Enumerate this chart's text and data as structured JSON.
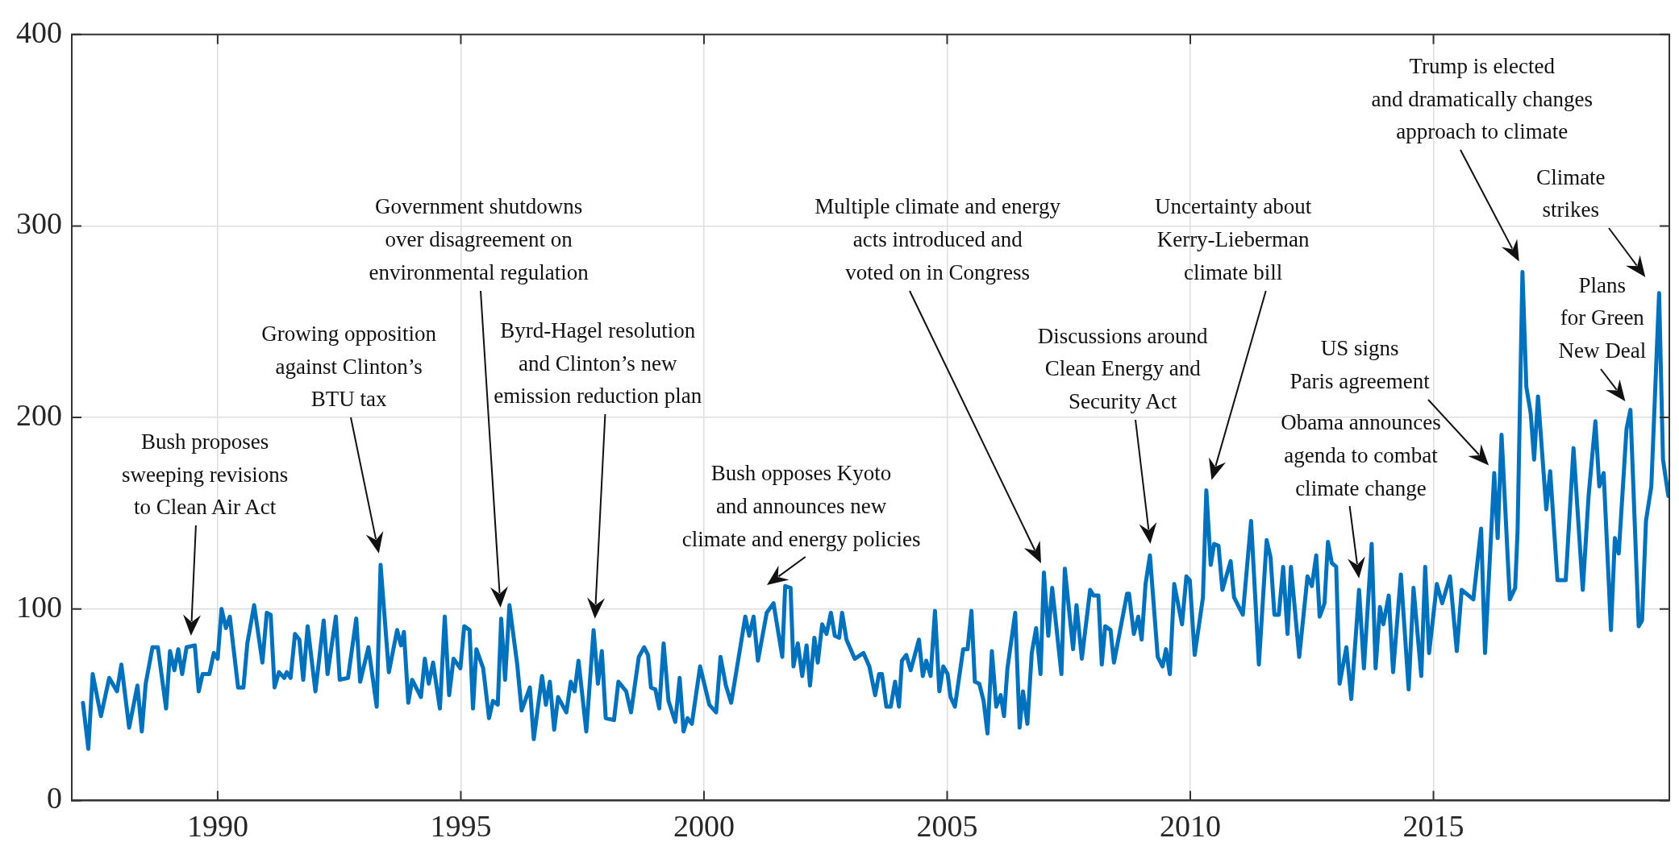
{
  "chart_data": {
    "type": "line",
    "x": [
      1987.23,
      1987.34,
      1987.43,
      1987.6,
      1987.77,
      1987.93,
      1988.02,
      1988.18,
      1988.35,
      1988.44,
      1988.52,
      1988.66,
      1988.77,
      1988.94,
      1989.02,
      1989.11,
      1989.19,
      1989.27,
      1989.36,
      1989.53,
      1989.61,
      1989.69,
      1989.83,
      1989.92,
      1990.0,
      1990.08,
      1990.17,
      1990.25,
      1990.42,
      1990.53,
      1990.61,
      1990.75,
      1990.92,
      1991.01,
      1991.09,
      1991.17,
      1991.26,
      1991.37,
      1991.42,
      1991.5,
      1991.59,
      1991.68,
      1991.76,
      1991.85,
      1992.01,
      1992.18,
      1992.26,
      1992.43,
      1992.51,
      1992.68,
      1992.85,
      1992.93,
      1993.1,
      1993.27,
      1993.35,
      1993.52,
      1993.69,
      1993.77,
      1993.83,
      1993.92,
      1994.0,
      1994.18,
      1994.26,
      1994.34,
      1994.43,
      1994.57,
      1994.67,
      1994.76,
      1994.85,
      1994.99,
      1995.07,
      1995.18,
      1995.25,
      1995.32,
      1995.46,
      1995.58,
      1995.66,
      1995.76,
      1995.83,
      1995.91,
      1996.0,
      1996.16,
      1996.25,
      1996.42,
      1996.5,
      1996.67,
      1996.75,
      1996.83,
      1996.92,
      1997.0,
      1997.17,
      1997.26,
      1997.34,
      1997.42,
      1997.58,
      1997.73,
      1997.82,
      1997.9,
      1997.98,
      1998.15,
      1998.24,
      1998.4,
      1998.5,
      1998.66,
      1998.77,
      1998.85,
      1998.91,
      1999.0,
      1999.08,
      1999.17,
      1999.27,
      1999.41,
      1999.5,
      1999.58,
      1999.66,
      1999.75,
      1999.92,
      2000.11,
      2000.25,
      2000.34,
      2000.45,
      2000.56,
      2000.85,
      2000.93,
      2001.02,
      2001.11,
      2001.29,
      2001.43,
      2001.61,
      2001.67,
      2001.78,
      2001.84,
      2001.93,
      2002.02,
      2002.11,
      2002.18,
      2002.27,
      2002.34,
      2002.43,
      2002.52,
      2002.61,
      2002.69,
      2002.78,
      2002.84,
      2002.93,
      2003.1,
      2003.28,
      2003.4,
      2003.52,
      2003.6,
      2003.66,
      2003.75,
      2003.84,
      2003.93,
      2004.01,
      2004.07,
      2004.16,
      2004.25,
      2004.42,
      2004.5,
      2004.57,
      2004.66,
      2004.75,
      2004.84,
      2004.92,
      2005.01,
      2005.07,
      2005.16,
      2005.33,
      2005.42,
      2005.5,
      2005.57,
      2005.66,
      2005.75,
      2005.83,
      2005.92,
      2006.01,
      2006.1,
      2006.17,
      2006.24,
      2006.4,
      2006.49,
      2006.56,
      2006.65,
      2006.74,
      2006.83,
      2006.92,
      2006.99,
      2007.08,
      2007.16,
      2007.35,
      2007.42,
      2007.59,
      2007.66,
      2007.77,
      2007.94,
      2008.01,
      2008.11,
      2008.18,
      2008.25,
      2008.36,
      2008.43,
      2008.7,
      2008.74,
      2008.84,
      2008.93,
      2009.0,
      2009.08,
      2009.17,
      2009.33,
      2009.43,
      2009.5,
      2009.58,
      2009.67,
      2009.83,
      2009.92,
      2009.99,
      2010.09,
      2010.26,
      2010.33,
      2010.42,
      2010.49,
      2010.58,
      2010.66,
      2010.83,
      2010.9,
      2011.08,
      2011.25,
      2011.41,
      2011.57,
      2011.65,
      2011.73,
      2011.82,
      2011.91,
      2012.0,
      2012.07,
      2012.24,
      2012.41,
      2012.5,
      2012.59,
      2012.66,
      2012.76,
      2012.83,
      2012.91,
      2013.0,
      2013.07,
      2013.21,
      2013.31,
      2013.47,
      2013.57,
      2013.73,
      2013.81,
      2013.9,
      2013.97,
      2014.08,
      2014.17,
      2014.33,
      2014.49,
      2014.59,
      2014.75,
      2014.83,
      2014.91,
      2015.07,
      2015.18,
      2015.34,
      2015.48,
      2015.58,
      2015.82,
      2015.98,
      2016.06,
      2016.25,
      2016.32,
      2016.4,
      2016.57,
      2016.68,
      2016.73,
      2016.83,
      2016.91,
      2017.0,
      2017.07,
      2017.15,
      2017.32,
      2017.4,
      2017.55,
      2017.72,
      2017.88,
      2018.07,
      2018.19,
      2018.33,
      2018.41,
      2018.5,
      2018.65,
      2018.73,
      2018.81,
      2018.97,
      2019.05,
      2019.22,
      2019.29,
      2019.37,
      2019.48,
      2019.64,
      2019.72,
      2019.83
    ],
    "series": [
      {
        "color": "#0072bd",
        "values": [
          51,
          27,
          66,
          44,
          64,
          57,
          71,
          38,
          60,
          36,
          61,
          80,
          80,
          48,
          78,
          68,
          79,
          66,
          80,
          81,
          57,
          66,
          66,
          77,
          74,
          100,
          90,
          96,
          59,
          59,
          82,
          102,
          72,
          98,
          97,
          59,
          67,
          64,
          67,
          64,
          87,
          84,
          63,
          91,
          57,
          94,
          66,
          96,
          63,
          64,
          95,
          62,
          80,
          49,
          123,
          67,
          89,
          81,
          88,
          51,
          63,
          54,
          74,
          61,
          72,
          48,
          96,
          55,
          74,
          69,
          91,
          89,
          48,
          79,
          69,
          43,
          52,
          50,
          95,
          63,
          102,
          71,
          47,
          59,
          32,
          65,
          50,
          62,
          37,
          54,
          46,
          62,
          57,
          73,
          36,
          89,
          61,
          78,
          43,
          42,
          62,
          57,
          46,
          75,
          80,
          76,
          59,
          58,
          48,
          82,
          52,
          41,
          64,
          36,
          43,
          40,
          70,
          50,
          46,
          75,
          60,
          51,
          96,
          86,
          96,
          73,
          98,
          103,
          75,
          112,
          111,
          70,
          82,
          65,
          81,
          60,
          85,
          72,
          92,
          87,
          98,
          86,
          85,
          98,
          84,
          74,
          77,
          70,
          55,
          66,
          66,
          49,
          49,
          62,
          49,
          73,
          76,
          68,
          84,
          65,
          73,
          65,
          99,
          57,
          70,
          66,
          54,
          49,
          79,
          79,
          99,
          62,
          61,
          52,
          35,
          78,
          49,
          55,
          44,
          69,
          98,
          38,
          57,
          40,
          77,
          90,
          66,
          119,
          86,
          111,
          66,
          121,
          79,
          102,
          74,
          110,
          107,
          107,
          71,
          91,
          89,
          72,
          108,
          108,
          87,
          96,
          84,
          113,
          128,
          75,
          70,
          79,
          66,
          113,
          92,
          117,
          115,
          76,
          106,
          162,
          123,
          134,
          133,
          110,
          125,
          106,
          97,
          146,
          71,
          136,
          127,
          97,
          97,
          122,
          87,
          122,
          75,
          117,
          112,
          128,
          96,
          103,
          135,
          124,
          122,
          61,
          80,
          53,
          110,
          69,
          134,
          69,
          101,
          92,
          107,
          67,
          118,
          58,
          111,
          65,
          122,
          77,
          113,
          103,
          117,
          78,
          110,
          105,
          142,
          77,
          171,
          137,
          191,
          105,
          111,
          141,
          276,
          216,
          202,
          178,
          211,
          152,
          172,
          115,
          115,
          184,
          110,
          159,
          198,
          164,
          171,
          89,
          137,
          129,
          194,
          204,
          91,
          94,
          146,
          164,
          265,
          178,
          159
        ]
      }
    ],
    "xlim": [
      1987,
      2019.85
    ],
    "xticks": [
      1990,
      1995,
      2000,
      2005,
      2010,
      2015
    ],
    "ylim": [
      0,
      400
    ],
    "yticks": [
      0,
      100,
      200,
      300,
      400
    ],
    "grid": true,
    "marker": "none",
    "line_style": "solid",
    "annotations": [
      "Bush proposes\nsweeping revisions\nto Clean Air Act",
      "Growing opposition\nagainst Clinton’s\nBTU tax",
      "Government shutdowns\nover disagreement on\nenvironmental regulation",
      "Byrd-Hagel resolution\nand Clinton’s new\nemission reduction plan",
      "Bush opposes Kyoto\nand announces new\nclimate and energy policies",
      "Multiple climate and energy\nacts introduced and\nvoted on in Congress",
      "Discussions around\nClean Energy and\nSecurity Act",
      "Uncertainty about\nKerry-Lieberman\nclimate bill",
      "US signs\nParis agreement",
      "Obama announces\nagenda to combat\nclimate change",
      "Trump is elected\nand dramatically changes\napproach to climate",
      "Climate\nstrikes",
      "Plans\nfor Green\nNew Deal"
    ]
  }
}
